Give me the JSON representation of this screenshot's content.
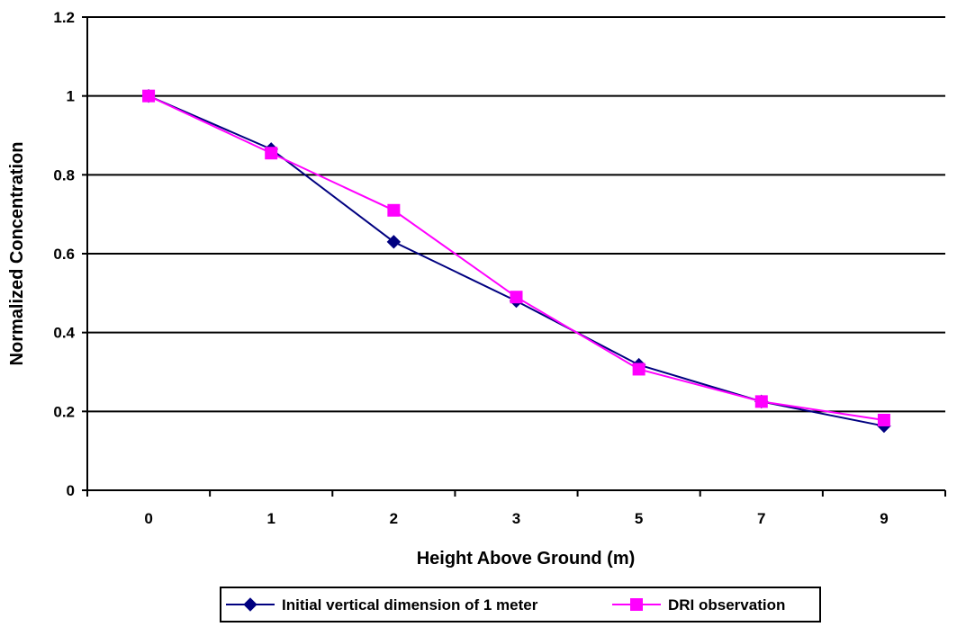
{
  "chart_data": {
    "type": "line",
    "title": "",
    "xlabel": "Height Above Ground (m)",
    "ylabel": "Normalized Concentration",
    "categories": [
      "0",
      "1",
      "2",
      "3",
      "5",
      "7",
      "9"
    ],
    "ylim": [
      0,
      1.2
    ],
    "yticks": [
      "0",
      "0.2",
      "0.4",
      "0.6",
      "0.8",
      "1",
      "1.2"
    ],
    "ytick_values": [
      0,
      0.2,
      0.4,
      0.6,
      0.8,
      1.0,
      1.2
    ],
    "grid": "horizontal",
    "legend_position": "bottom",
    "series": [
      {
        "name": "Initial vertical dimension of 1 meter",
        "values": [
          1.0,
          0.865,
          0.63,
          0.48,
          0.318,
          0.225,
          0.163
        ],
        "color": "#000080",
        "marker": "diamond"
      },
      {
        "name": "DRI observation",
        "values": [
          1.0,
          0.855,
          0.71,
          0.49,
          0.307,
          0.225,
          0.178
        ],
        "color": "#FF00FF",
        "marker": "square"
      }
    ]
  }
}
